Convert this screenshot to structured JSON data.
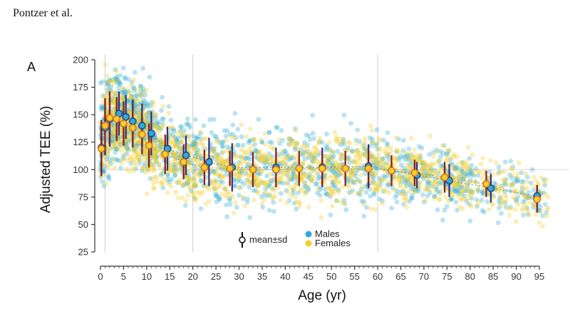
{
  "header": {
    "text": "Pontzer et al."
  },
  "chart_data": {
    "type": "scatter",
    "panel_label": "A",
    "xlabel": "Age (yr)",
    "ylabel": "Adjusted TEE (%)",
    "xlim": [
      0,
      97
    ],
    "ylim": [
      25,
      200
    ],
    "x_ticks": [
      0,
      5,
      10,
      15,
      20,
      25,
      30,
      35,
      40,
      45,
      50,
      55,
      60,
      65,
      70,
      75,
      80,
      85,
      90,
      95
    ],
    "y_ticks": [
      25,
      50,
      75,
      100,
      125,
      150,
      175,
      200
    ],
    "reference_line_y": 100,
    "vertical_lines_x": [
      1,
      20,
      60
    ],
    "legend": {
      "mean_sd": "mean±sd",
      "males": "Males",
      "females": "Females",
      "placement": "bottom-center"
    },
    "colors": {
      "males": "#2fa9d6",
      "females": "#f4cf2a",
      "sd_bar": "#3a2a78",
      "female_sd_bar": "#8b1a1a",
      "female_edge": "#d9661c",
      "male_edge": "#1f3a8a"
    },
    "series": [
      {
        "name": "Males",
        "means": [
          {
            "x": 0.2,
            "y": 120,
            "sd": 25
          },
          {
            "x": 1.0,
            "y": 138,
            "sd": 25
          },
          {
            "x": 2.0,
            "y": 146,
            "sd": 25
          },
          {
            "x": 4.0,
            "y": 151,
            "sd": 20
          },
          {
            "x": 5.5,
            "y": 148,
            "sd": 20
          },
          {
            "x": 7.0,
            "y": 144,
            "sd": 20
          },
          {
            "x": 9.0,
            "y": 140,
            "sd": 20
          },
          {
            "x": 11.0,
            "y": 133,
            "sd": 20
          },
          {
            "x": 14.5,
            "y": 119,
            "sd": 20
          },
          {
            "x": 18.5,
            "y": 113,
            "sd": 18
          },
          {
            "x": 23.5,
            "y": 107,
            "sd": 22
          },
          {
            "x": 28.5,
            "y": 102,
            "sd": 22
          },
          {
            "x": 38.0,
            "y": 102,
            "sd": 18
          },
          {
            "x": 48.0,
            "y": 102,
            "sd": 18
          },
          {
            "x": 58.0,
            "y": 103,
            "sd": 20
          },
          {
            "x": 68.5,
            "y": 95,
            "sd": 12
          },
          {
            "x": 75.5,
            "y": 90,
            "sd": 15
          },
          {
            "x": 84.5,
            "y": 83,
            "sd": 13
          },
          {
            "x": 94.5,
            "y": 76,
            "sd": 10
          }
        ]
      },
      {
        "name": "Females",
        "means": [
          {
            "x": 0.2,
            "y": 119,
            "sd": 25
          },
          {
            "x": 1.0,
            "y": 140,
            "sd": 25
          },
          {
            "x": 2.0,
            "y": 147,
            "sd": 24
          },
          {
            "x": 3.5,
            "y": 146,
            "sd": 20
          },
          {
            "x": 5.0,
            "y": 142,
            "sd": 20
          },
          {
            "x": 7.0,
            "y": 138,
            "sd": 18
          },
          {
            "x": 9.0,
            "y": 132,
            "sd": 18
          },
          {
            "x": 10.5,
            "y": 122,
            "sd": 20
          },
          {
            "x": 14.0,
            "y": 114,
            "sd": 18
          },
          {
            "x": 18.0,
            "y": 107,
            "sd": 16
          },
          {
            "x": 22.5,
            "y": 102,
            "sd": 16
          },
          {
            "x": 28.0,
            "y": 101,
            "sd": 16
          },
          {
            "x": 33.0,
            "y": 100,
            "sd": 16
          },
          {
            "x": 38.0,
            "y": 100,
            "sd": 16
          },
          {
            "x": 43.0,
            "y": 101,
            "sd": 16
          },
          {
            "x": 48.0,
            "y": 101,
            "sd": 16
          },
          {
            "x": 53.0,
            "y": 101,
            "sd": 16
          },
          {
            "x": 58.0,
            "y": 101,
            "sd": 16
          },
          {
            "x": 63.0,
            "y": 99,
            "sd": 14
          },
          {
            "x": 68.0,
            "y": 97,
            "sd": 12
          },
          {
            "x": 74.5,
            "y": 93,
            "sd": 14
          },
          {
            "x": 83.5,
            "y": 87,
            "sd": 12
          },
          {
            "x": 94.5,
            "y": 73,
            "sd": 12
          }
        ]
      }
    ]
  }
}
